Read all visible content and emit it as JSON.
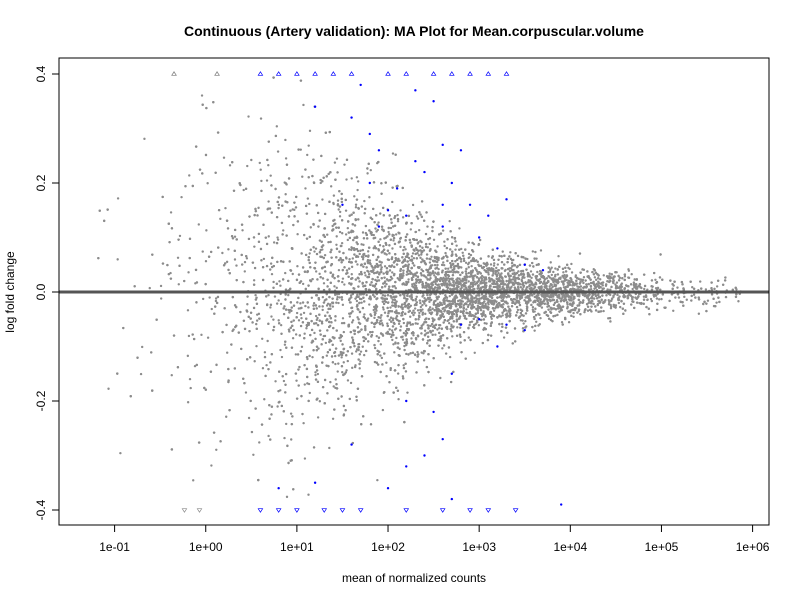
{
  "chart_data": {
    "type": "scatter",
    "title": "Continuous (Artery validation): MA Plot for Mean.corpuscular.volume",
    "xlabel": "mean of normalized counts",
    "ylabel": "log fold change",
    "x_scale": "log10",
    "xlim_log10": [
      -1.61,
      6.18
    ],
    "ylim": [
      -0.43,
      0.43
    ],
    "x_ticks": [
      {
        "value": -1,
        "label": "1e-01"
      },
      {
        "value": 0,
        "label": "1e+00"
      },
      {
        "value": 1,
        "label": "1e+01"
      },
      {
        "value": 2,
        "label": "1e+02"
      },
      {
        "value": 3,
        "label": "1e+03"
      },
      {
        "value": 4,
        "label": "1e+04"
      },
      {
        "value": 5,
        "label": "1e+05"
      },
      {
        "value": 6,
        "label": "1e+06"
      }
    ],
    "y_ticks": [
      {
        "value": 0.4,
        "label": "0.4"
      },
      {
        "value": 0.2,
        "label": "0.2"
      },
      {
        "value": 0.0,
        "label": "0.0"
      },
      {
        "value": -0.2,
        "label": "-0.2"
      },
      {
        "value": -0.4,
        "label": "-0.4"
      }
    ],
    "reference_line": 0,
    "clip_value": 0.4,
    "colors": {
      "nonsignificant": "#8c8c8c",
      "significant": "#0000ff",
      "refline": "#555555"
    },
    "background_cloud": {
      "n_points": 7000,
      "log10_mean_distribution": {
        "center": 2.6,
        "sd": 1.25
      },
      "lfc_sd_by_log10_mean": [
        [
          -1,
          0.17
        ],
        [
          0,
          0.16
        ],
        [
          1,
          0.13
        ],
        [
          2,
          0.08
        ],
        [
          3,
          0.035
        ],
        [
          4,
          0.022
        ],
        [
          5,
          0.016
        ],
        [
          6,
          0.015
        ]
      ]
    },
    "significant_points": [
      [
        0.6,
        0.4
      ],
      [
        0.8,
        0.4
      ],
      [
        1.0,
        0.4
      ],
      [
        1.2,
        0.4
      ],
      [
        1.4,
        0.4
      ],
      [
        1.6,
        0.4
      ],
      [
        2.0,
        0.4
      ],
      [
        2.2,
        0.4
      ],
      [
        2.5,
        0.4
      ],
      [
        2.7,
        0.4
      ],
      [
        2.9,
        0.4
      ],
      [
        3.1,
        0.4
      ],
      [
        3.3,
        0.4
      ],
      [
        1.7,
        0.38
      ],
      [
        2.3,
        0.37
      ],
      [
        2.5,
        0.35
      ],
      [
        1.2,
        0.34
      ],
      [
        1.6,
        0.32
      ],
      [
        1.8,
        0.29
      ],
      [
        1.9,
        0.26
      ],
      [
        2.6,
        0.27
      ],
      [
        2.8,
        0.26
      ],
      [
        2.3,
        0.24
      ],
      [
        2.4,
        0.22
      ],
      [
        1.8,
        0.2
      ],
      [
        2.1,
        0.19
      ],
      [
        2.7,
        0.2
      ],
      [
        1.5,
        0.16
      ],
      [
        2.0,
        0.15
      ],
      [
        2.2,
        0.14
      ],
      [
        2.6,
        0.16
      ],
      [
        2.9,
        0.16
      ],
      [
        3.1,
        0.14
      ],
      [
        3.3,
        0.17
      ],
      [
        1.9,
        0.12
      ],
      [
        2.6,
        0.12
      ],
      [
        3.0,
        0.1
      ],
      [
        3.2,
        0.08
      ],
      [
        3.5,
        0.05
      ],
      [
        3.7,
        0.04
      ],
      [
        2.8,
        -0.06
      ],
      [
        3.0,
        -0.05
      ],
      [
        3.3,
        -0.06
      ],
      [
        3.5,
        -0.07
      ],
      [
        3.2,
        -0.1
      ],
      [
        2.7,
        -0.15
      ],
      [
        2.2,
        -0.2
      ],
      [
        2.5,
        -0.22
      ],
      [
        2.6,
        -0.27
      ],
      [
        2.4,
        -0.3
      ],
      [
        1.6,
        -0.28
      ],
      [
        2.2,
        -0.32
      ],
      [
        2.0,
        -0.36
      ],
      [
        0.8,
        -0.36
      ],
      [
        1.2,
        -0.35
      ],
      [
        2.7,
        -0.38
      ],
      [
        3.9,
        -0.39
      ],
      [
        0.6,
        -0.4
      ],
      [
        0.8,
        -0.4
      ],
      [
        1.0,
        -0.4
      ],
      [
        1.3,
        -0.4
      ],
      [
        1.5,
        -0.4
      ],
      [
        1.7,
        -0.4
      ],
      [
        2.2,
        -0.4
      ],
      [
        2.6,
        -0.4
      ],
      [
        2.9,
        -0.4
      ],
      [
        3.1,
        -0.4
      ],
      [
        3.4,
        -0.4
      ]
    ]
  }
}
